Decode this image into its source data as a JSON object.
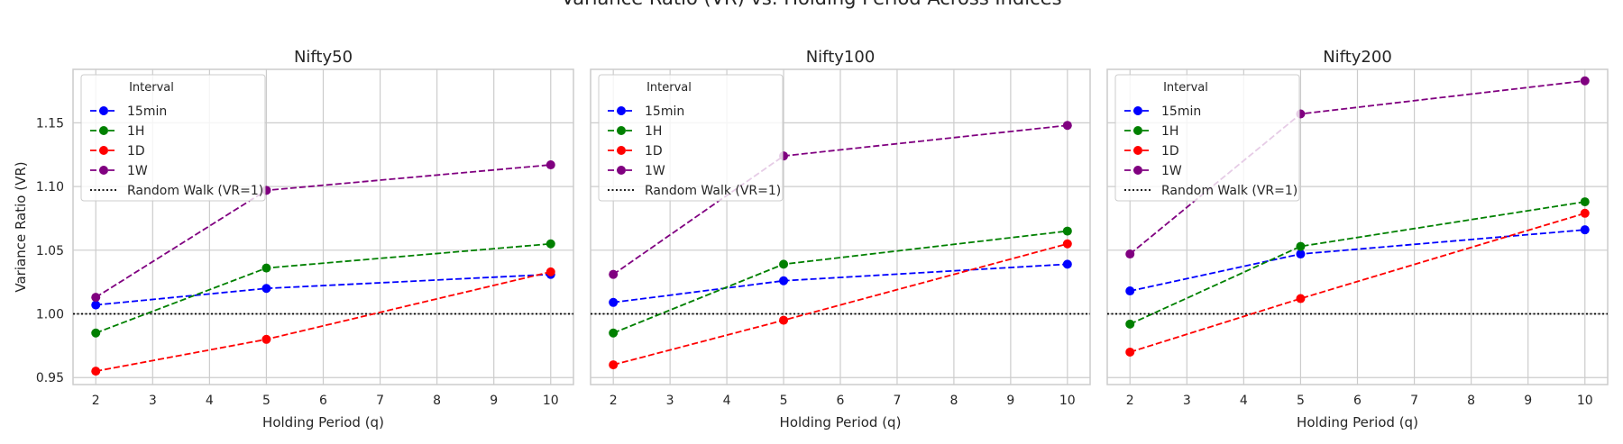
{
  "figure": {
    "suptitle": "Variance Ratio (VR) vs. Holding Period Across Indices"
  },
  "legend": {
    "title": "Interval",
    "reference_label": "Random Walk (VR=1)"
  },
  "colors": {
    "15min": "#0000ff",
    "1H": "#008000",
    "1D": "#ff0000",
    "1W": "#800080",
    "reference": "#000000",
    "grid": "#cccccc",
    "frame": "#cccccc"
  },
  "chart_data": [
    {
      "type": "line",
      "title": "Nifty50",
      "xlabel": "Holding Period (q)",
      "ylabel": "Variance Ratio (VR)",
      "x": [
        2,
        5,
        10
      ],
      "xticks": [
        2,
        3,
        4,
        5,
        6,
        7,
        8,
        9,
        10
      ],
      "yticks": [
        "0.95",
        "1.00",
        "1.05",
        "1.10",
        "1.15"
      ],
      "xlim": [
        1.6,
        10.4
      ],
      "ylim": [
        0.9445,
        1.192
      ],
      "reference_line": 1.0,
      "grid": true,
      "legend_position": "upper left",
      "series": [
        {
          "name": "15min",
          "values": [
            1.007,
            1.02,
            1.031
          ]
        },
        {
          "name": "1H",
          "values": [
            0.985,
            1.036,
            1.055
          ]
        },
        {
          "name": "1D",
          "values": [
            0.955,
            0.98,
            1.033
          ]
        },
        {
          "name": "1W",
          "values": [
            1.013,
            1.097,
            1.117
          ]
        }
      ]
    },
    {
      "type": "line",
      "title": "Nifty100",
      "xlabel": "Holding Period (q)",
      "ylabel": "",
      "x": [
        2,
        5,
        10
      ],
      "xticks": [
        2,
        3,
        4,
        5,
        6,
        7,
        8,
        9,
        10
      ],
      "yticks": [],
      "xlim": [
        1.6,
        10.4
      ],
      "ylim": [
        0.9445,
        1.192
      ],
      "reference_line": 1.0,
      "grid": true,
      "legend_position": "upper left",
      "series": [
        {
          "name": "15min",
          "values": [
            1.009,
            1.026,
            1.039
          ]
        },
        {
          "name": "1H",
          "values": [
            0.985,
            1.039,
            1.065
          ]
        },
        {
          "name": "1D",
          "values": [
            0.96,
            0.995,
            1.055
          ]
        },
        {
          "name": "1W",
          "values": [
            1.031,
            1.124,
            1.148
          ]
        }
      ]
    },
    {
      "type": "line",
      "title": "Nifty200",
      "xlabel": "Holding Period (q)",
      "ylabel": "",
      "x": [
        2,
        5,
        10
      ],
      "xticks": [
        2,
        3,
        4,
        5,
        6,
        7,
        8,
        9,
        10
      ],
      "yticks": [],
      "xlim": [
        1.6,
        10.4
      ],
      "ylim": [
        0.9445,
        1.192
      ],
      "reference_line": 1.0,
      "grid": true,
      "legend_position": "upper left",
      "series": [
        {
          "name": "15min",
          "values": [
            1.018,
            1.047,
            1.066
          ]
        },
        {
          "name": "1H",
          "values": [
            0.992,
            1.053,
            1.088
          ]
        },
        {
          "name": "1D",
          "values": [
            0.97,
            1.012,
            1.079
          ]
        },
        {
          "name": "1W",
          "values": [
            1.047,
            1.157,
            1.183
          ]
        }
      ]
    }
  ]
}
